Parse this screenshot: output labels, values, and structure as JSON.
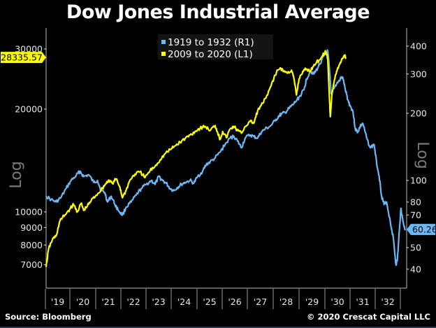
{
  "chart_data": {
    "type": "line",
    "title": "Dow Jones Industrial Average",
    "x_tick_labels": [
      "'19",
      "'20",
      "'21",
      "'22",
      "'23",
      "'24",
      "'25",
      "'26",
      "'27",
      "'28",
      "'29",
      "'30",
      "'31",
      "'32"
    ],
    "x_range_years": [
      1918.55,
      1932.85
    ],
    "left_axis": {
      "label": "Log",
      "scale": "log",
      "ticks": [
        30000,
        20000,
        10000,
        9000,
        8000,
        7000
      ],
      "tick_labels": [
        "30000",
        "20000",
        "10000",
        "9000",
        "8000",
        "7000"
      ],
      "range": [
        6700,
        32000
      ]
    },
    "right_axis": {
      "label": "Log",
      "scale": "log",
      "ticks": [
        400,
        300,
        200,
        100,
        80,
        70,
        50,
        40
      ],
      "tick_labels": [
        "400",
        "300",
        "200",
        "100",
        "80",
        "70",
        "50",
        "40"
      ],
      "range": [
        36,
        420
      ]
    },
    "legend": {
      "placement": "top-center",
      "entries": [
        {
          "label": "1919 to 1932 (R1)",
          "color": "#6cb8f5"
        },
        {
          "label": "2009 to 2020 (L1)",
          "color": "#ffff00"
        }
      ]
    },
    "series": [
      {
        "name": "1919 to 1932 (R1)",
        "axis": "right",
        "color": "#6cb8f5",
        "last_value_label": "60.26",
        "points": [
          [
            1918.55,
            85
          ],
          [
            1918.75,
            82
          ],
          [
            1918.95,
            80
          ],
          [
            1919.15,
            84
          ],
          [
            1919.35,
            92
          ],
          [
            1919.55,
            100
          ],
          [
            1919.75,
            105
          ],
          [
            1919.9,
            110
          ],
          [
            1920.05,
            104
          ],
          [
            1920.25,
            106
          ],
          [
            1920.45,
            98
          ],
          [
            1920.6,
            100
          ],
          [
            1920.75,
            90
          ],
          [
            1920.9,
            88
          ],
          [
            1921.0,
            80
          ],
          [
            1921.15,
            85
          ],
          [
            1921.3,
            78
          ],
          [
            1921.45,
            73
          ],
          [
            1921.6,
            70
          ],
          [
            1921.75,
            76
          ],
          [
            1921.95,
            80
          ],
          [
            1922.15,
            86
          ],
          [
            1922.35,
            92
          ],
          [
            1922.55,
            96
          ],
          [
            1922.75,
            100
          ],
          [
            1922.9,
            96
          ],
          [
            1923.05,
            104
          ],
          [
            1923.2,
            100
          ],
          [
            1923.35,
            97
          ],
          [
            1923.5,
            92
          ],
          [
            1923.65,
            90
          ],
          [
            1923.8,
            93
          ],
          [
            1923.95,
            96
          ],
          [
            1924.1,
            98
          ],
          [
            1924.3,
            100
          ],
          [
            1924.45,
            97
          ],
          [
            1924.6,
            104
          ],
          [
            1924.8,
            110
          ],
          [
            1924.95,
            118
          ],
          [
            1925.1,
            121
          ],
          [
            1925.3,
            126
          ],
          [
            1925.5,
            134
          ],
          [
            1925.7,
            145
          ],
          [
            1925.9,
            155
          ],
          [
            1926.05,
            158
          ],
          [
            1926.2,
            150
          ],
          [
            1926.35,
            140
          ],
          [
            1926.5,
            155
          ],
          [
            1926.7,
            160
          ],
          [
            1926.85,
            157
          ],
          [
            1927.0,
            155
          ],
          [
            1927.15,
            165
          ],
          [
            1927.3,
            170
          ],
          [
            1927.5,
            175
          ],
          [
            1927.7,
            185
          ],
          [
            1927.85,
            195
          ],
          [
            1927.95,
            198
          ],
          [
            1928.1,
            202
          ],
          [
            1928.25,
            210
          ],
          [
            1928.4,
            218
          ],
          [
            1928.55,
            228
          ],
          [
            1928.7,
            240
          ],
          [
            1928.85,
            255
          ],
          [
            1928.95,
            285
          ],
          [
            1929.1,
            310
          ],
          [
            1929.25,
            300
          ],
          [
            1929.4,
            320
          ],
          [
            1929.55,
            345
          ],
          [
            1929.7,
            370
          ],
          [
            1929.8,
            380
          ],
          [
            1929.88,
            300
          ],
          [
            1929.93,
            245
          ],
          [
            1930.0,
            255
          ],
          [
            1930.15,
            270
          ],
          [
            1930.3,
            285
          ],
          [
            1930.4,
            290
          ],
          [
            1930.5,
            255
          ],
          [
            1930.6,
            230
          ],
          [
            1930.7,
            215
          ],
          [
            1930.8,
            205
          ],
          [
            1930.9,
            170
          ],
          [
            1931.0,
            165
          ],
          [
            1931.1,
            175
          ],
          [
            1931.2,
            180
          ],
          [
            1931.35,
            155
          ],
          [
            1931.5,
            140
          ],
          [
            1931.65,
            145
          ],
          [
            1931.75,
            120
          ],
          [
            1931.85,
            105
          ],
          [
            1931.95,
            85
          ],
          [
            1932.05,
            78
          ],
          [
            1932.15,
            80
          ],
          [
            1932.3,
            65
          ],
          [
            1932.42,
            55
          ],
          [
            1932.52,
            42
          ],
          [
            1932.58,
            44
          ],
          [
            1932.66,
            60
          ],
          [
            1932.72,
            75
          ],
          [
            1932.78,
            68
          ],
          [
            1932.85,
            62
          ],
          [
            1932.9,
            60.26
          ]
        ]
      },
      {
        "name": "2009 to 2020 (L1)",
        "axis": "left",
        "color": "#ffff00",
        "last_value_label": "28335.57",
        "points": [
          [
            1918.55,
            6900
          ],
          [
            1918.65,
            7800
          ],
          [
            1918.8,
            8300
          ],
          [
            1918.95,
            8500
          ],
          [
            1919.1,
            9400
          ],
          [
            1919.3,
            9800
          ],
          [
            1919.5,
            10200
          ],
          [
            1919.65,
            10500
          ],
          [
            1919.8,
            10000
          ],
          [
            1919.95,
            10600
          ],
          [
            1920.05,
            10100
          ],
          [
            1920.2,
            10400
          ],
          [
            1920.35,
            10800
          ],
          [
            1920.55,
            11200
          ],
          [
            1920.75,
            11600
          ],
          [
            1920.9,
            12000
          ],
          [
            1921.05,
            12400
          ],
          [
            1921.2,
            12100
          ],
          [
            1921.35,
            12500
          ],
          [
            1921.5,
            11800
          ],
          [
            1921.6,
            11000
          ],
          [
            1921.75,
            11600
          ],
          [
            1921.9,
            12400
          ],
          [
            1922.1,
            12900
          ],
          [
            1922.3,
            13100
          ],
          [
            1922.5,
            12600
          ],
          [
            1922.7,
            13200
          ],
          [
            1922.9,
            13600
          ],
          [
            1923.1,
            14200
          ],
          [
            1923.3,
            14800
          ],
          [
            1923.5,
            15200
          ],
          [
            1923.7,
            15600
          ],
          [
            1923.9,
            16000
          ],
          [
            1924.1,
            16400
          ],
          [
            1924.3,
            16800
          ],
          [
            1924.5,
            17200
          ],
          [
            1924.7,
            17600
          ],
          [
            1924.9,
            17800
          ],
          [
            1925.1,
            17300
          ],
          [
            1925.3,
            17900
          ],
          [
            1925.4,
            17100
          ],
          [
            1925.5,
            16300
          ],
          [
            1925.6,
            17200
          ],
          [
            1925.75,
            16500
          ],
          [
            1925.9,
            17500
          ],
          [
            1926.05,
            17800
          ],
          [
            1926.2,
            17300
          ],
          [
            1926.35,
            17000
          ],
          [
            1926.5,
            17800
          ],
          [
            1926.7,
            18400
          ],
          [
            1926.85,
            18200
          ],
          [
            1927.0,
            19800
          ],
          [
            1927.2,
            20800
          ],
          [
            1927.4,
            22000
          ],
          [
            1927.6,
            24200
          ],
          [
            1927.75,
            25600
          ],
          [
            1927.9,
            26400
          ],
          [
            1928.05,
            25800
          ],
          [
            1928.2,
            25500
          ],
          [
            1928.35,
            26000
          ],
          [
            1928.45,
            24500
          ],
          [
            1928.55,
            22000
          ],
          [
            1928.65,
            24500
          ],
          [
            1928.8,
            25800
          ],
          [
            1928.95,
            26200
          ],
          [
            1929.1,
            25800
          ],
          [
            1929.25,
            27000
          ],
          [
            1929.45,
            27800
          ],
          [
            1929.6,
            28800
          ],
          [
            1929.72,
            29400
          ],
          [
            1929.8,
            28000
          ],
          [
            1929.86,
            22000
          ],
          [
            1929.9,
            19000
          ],
          [
            1929.96,
            22000
          ],
          [
            1930.05,
            24000
          ],
          [
            1930.15,
            25800
          ],
          [
            1930.25,
            26800
          ],
          [
            1930.35,
            27900
          ],
          [
            1930.45,
            28700
          ],
          [
            1930.52,
            28335.57
          ]
        ]
      }
    ]
  },
  "footer": {
    "source": "Source: Bloomberg",
    "copyright": "© 2020 Crescat Capital LLC"
  }
}
